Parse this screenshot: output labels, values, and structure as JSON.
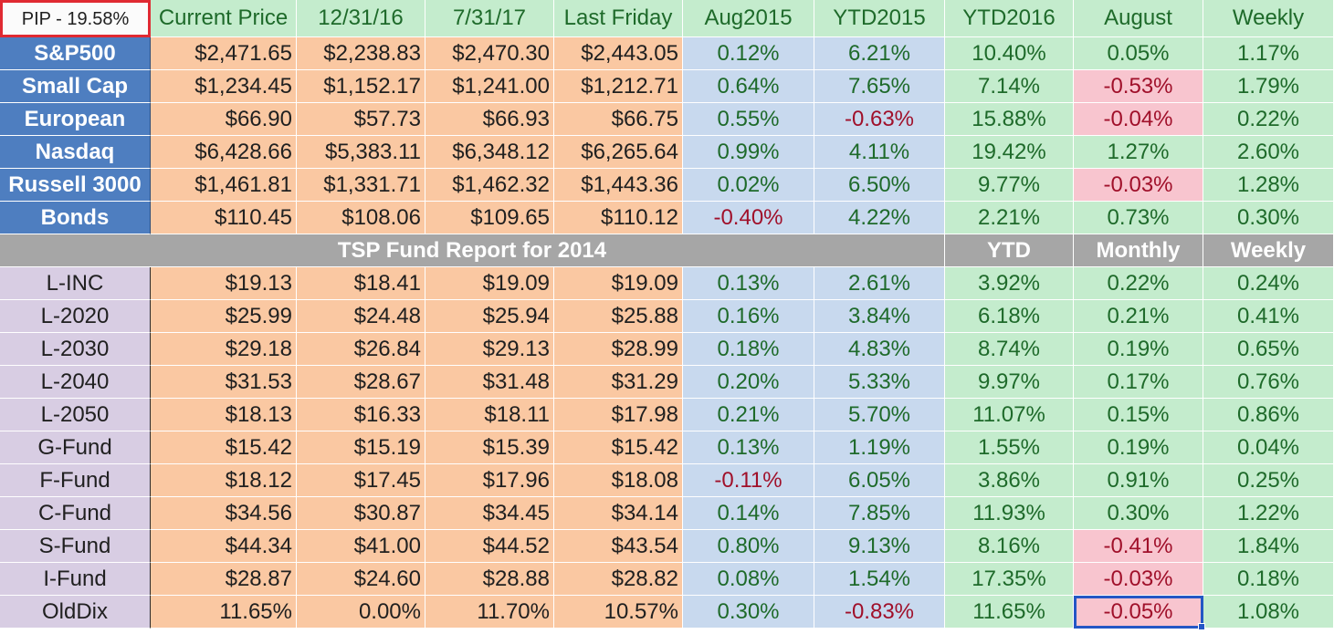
{
  "header": {
    "pip_label": "PIP - 19.58%",
    "columns": [
      "Current Price",
      "12/31/16",
      "7/31/17",
      "Last Friday",
      "Aug2015",
      "YTD2015",
      "YTD2016",
      "August",
      "Weekly"
    ]
  },
  "indices": [
    {
      "name": "S&P500",
      "values": [
        "$2,471.65",
        "$2,238.83",
        "$2,470.30",
        "$2,443.05",
        "0.12%",
        "6.21%",
        "10.40%",
        "0.05%",
        "1.17%"
      ]
    },
    {
      "name": "Small Cap",
      "values": [
        "$1,234.45",
        "$1,152.17",
        "$1,241.00",
        "$1,212.71",
        "0.64%",
        "7.65%",
        "7.14%",
        "-0.53%",
        "1.79%"
      ]
    },
    {
      "name": "European",
      "values": [
        "$66.90",
        "$57.73",
        "$66.93",
        "$66.75",
        "0.55%",
        "-0.63%",
        "15.88%",
        "-0.04%",
        "0.22%"
      ]
    },
    {
      "name": "Nasdaq",
      "values": [
        "$6,428.66",
        "$5,383.11",
        "$6,348.12",
        "$6,265.64",
        "0.99%",
        "4.11%",
        "19.42%",
        "1.27%",
        "2.60%"
      ]
    },
    {
      "name": "Russell 3000",
      "values": [
        "$1,461.81",
        "$1,331.71",
        "$1,462.32",
        "$1,443.36",
        "0.02%",
        "6.50%",
        "9.77%",
        "-0.03%",
        "1.28%"
      ]
    },
    {
      "name": "Bonds",
      "values": [
        "$110.45",
        "$108.06",
        "$109.65",
        "$110.12",
        "-0.40%",
        "4.22%",
        "2.21%",
        "0.73%",
        "0.30%"
      ]
    }
  ],
  "section": {
    "title": "TSP Fund Report for 2014",
    "col_ytd": "YTD",
    "col_monthly": "Monthly",
    "col_weekly": "Weekly"
  },
  "funds": [
    {
      "name": "L-INC",
      "values": [
        "$19.13",
        "$18.41",
        "$19.09",
        "$19.09",
        "0.13%",
        "2.61%",
        "3.92%",
        "0.22%",
        "0.24%"
      ]
    },
    {
      "name": "L-2020",
      "values": [
        "$25.99",
        "$24.48",
        "$25.94",
        "$25.88",
        "0.16%",
        "3.84%",
        "6.18%",
        "0.21%",
        "0.41%"
      ]
    },
    {
      "name": "L-2030",
      "values": [
        "$29.18",
        "$26.84",
        "$29.13",
        "$28.99",
        "0.18%",
        "4.83%",
        "8.74%",
        "0.19%",
        "0.65%"
      ]
    },
    {
      "name": "L-2040",
      "values": [
        "$31.53",
        "$28.67",
        "$31.48",
        "$31.29",
        "0.20%",
        "5.33%",
        "9.97%",
        "0.17%",
        "0.76%"
      ]
    },
    {
      "name": "L-2050",
      "values": [
        "$18.13",
        "$16.33",
        "$18.11",
        "$17.98",
        "0.21%",
        "5.70%",
        "11.07%",
        "0.15%",
        "0.86%"
      ]
    },
    {
      "name": "G-Fund",
      "values": [
        "$15.42",
        "$15.19",
        "$15.39",
        "$15.42",
        "0.13%",
        "1.19%",
        "1.55%",
        "0.19%",
        "0.04%"
      ]
    },
    {
      "name": "F-Fund",
      "values": [
        "$18.12",
        "$17.45",
        "$17.96",
        "$18.08",
        "-0.11%",
        "6.05%",
        "3.86%",
        "0.91%",
        "0.25%"
      ]
    },
    {
      "name": "C-Fund",
      "values": [
        "$34.56",
        "$30.87",
        "$34.45",
        "$34.14",
        "0.14%",
        "7.85%",
        "11.93%",
        "0.30%",
        "1.22%"
      ]
    },
    {
      "name": "S-Fund",
      "values": [
        "$44.34",
        "$41.00",
        "$44.52",
        "$43.54",
        "0.80%",
        "9.13%",
        "8.16%",
        "-0.41%",
        "1.84%"
      ]
    },
    {
      "name": "I-Fund",
      "values": [
        "$28.87",
        "$24.60",
        "$28.88",
        "$28.82",
        "0.08%",
        "1.54%",
        "17.35%",
        "-0.03%",
        "0.18%"
      ]
    },
    {
      "name": "OldDix",
      "values": [
        "11.65%",
        "0.00%",
        "11.70%",
        "10.57%",
        "0.30%",
        "-0.83%",
        "11.65%",
        "-0.05%",
        "1.08%"
      ]
    }
  ],
  "selection": {
    "row": "OldDix",
    "column": "August"
  },
  "colors": {
    "header_green": "#c4eccd",
    "price_orange": "#fac8a2",
    "pct_blue": "#c8d9ee",
    "index_blue": "#4e7ec0",
    "fund_purple": "#d8cde3",
    "negative_pink": "#f8c5cf",
    "section_gray": "#a6a6a6",
    "positive_text": "#1e6a2a",
    "negative_text": "#a0102a",
    "pip_border_red": "#e02a32",
    "selection_blue": "#2457c5"
  }
}
